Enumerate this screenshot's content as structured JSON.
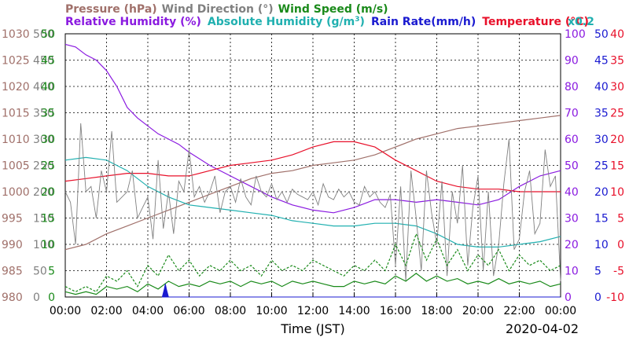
{
  "chart_data": {
    "type": "line",
    "date": "2020-04-02",
    "xlabel": "Time (JST)",
    "x_ticks": [
      "00:00",
      "02:00",
      "04:00",
      "06:00",
      "08:00",
      "10:00",
      "12:00",
      "14:00",
      "16:00",
      "18:00",
      "20:00",
      "22:00",
      "00:00"
    ],
    "legend_row1": [
      {
        "text": "Pressure (hPa)",
        "color": "#a0706a"
      },
      {
        "text": "Wind Direction (°)",
        "color": "#808080"
      },
      {
        "text": "Wind Speed (m/s)",
        "color": "#1a8a1a"
      }
    ],
    "legend_row2": [
      {
        "text": "Relative Humidity (%)",
        "color": "#8a1ae0"
      },
      {
        "text": "Absolute Humidity (g/m",
        "sup": "3",
        "close": ")",
        "color": "#20b0b0"
      },
      {
        "text": "Rain Rate(mm/h)",
        "color": "#1a1ad0"
      },
      {
        "text": "Temperature (°C)",
        "color": "#e8102a"
      }
    ],
    "scale_note": "x0.2",
    "axes": {
      "pressure": {
        "color": "#a0706a",
        "min": 980,
        "max": 1030,
        "ticks": [
          "980",
          "985",
          "990",
          "995",
          "1000",
          "1005",
          "1010",
          "1015",
          "1020",
          "1025",
          "1030"
        ]
      },
      "wind_direction": {
        "color": "#808080",
        "min": 0,
        "max": 500,
        "ticks": [
          "0",
          "50",
          "100",
          "150",
          "200",
          "250",
          "300",
          "350",
          "400",
          "450",
          "500"
        ]
      },
      "wind_speed": {
        "color": "#1a8a1a",
        "min": 0,
        "max": 50,
        "ticks": [
          "0",
          "5",
          "10",
          "15",
          "20",
          "25",
          "30",
          "35",
          "40",
          "45",
          "50"
        ]
      },
      "relative_humidity": {
        "color": "#8a1ae0",
        "min": 0,
        "max": 100,
        "ticks": [
          "0",
          "10",
          "20",
          "30",
          "40",
          "50",
          "60",
          "70",
          "80",
          "90",
          "100"
        ]
      },
      "rain_rate": {
        "color": "#1a1ad0",
        "min": 0,
        "max": 50,
        "ticks": [
          "0",
          "5",
          "10",
          "15",
          "20",
          "25",
          "30",
          "35",
          "40",
          "45",
          "50"
        ]
      },
      "temperature": {
        "color": "#e8102a",
        "min": -10,
        "max": 40,
        "ticks": [
          "-10",
          "-5",
          "0",
          "5",
          "10",
          "15",
          "20",
          "25",
          "30",
          "35",
          "40"
        ]
      }
    },
    "series": [
      {
        "name": "Pressure",
        "axis": "pressure",
        "color": "#a0706a",
        "style": "solid",
        "x": [
          0,
          1,
          2,
          3,
          4,
          5,
          6,
          7,
          8,
          9,
          10,
          11,
          12,
          13,
          14,
          15,
          16,
          17,
          18,
          19,
          20,
          21,
          22,
          23,
          24
        ],
        "y": [
          989,
          990,
          992,
          993.5,
          995,
          996.5,
          998,
          999.5,
          1001,
          1002.5,
          1003.5,
          1004,
          1005,
          1005.5,
          1006,
          1007,
          1008.5,
          1010,
          1011,
          1012,
          1012.5,
          1013,
          1013.5,
          1014,
          1014.5
        ]
      },
      {
        "name": "Relative Humidity",
        "axis": "relative_humidity",
        "color": "#8a1ae0",
        "style": "solid",
        "x": [
          0,
          0.5,
          1,
          1.5,
          2,
          2.5,
          3,
          3.5,
          4,
          4.5,
          5,
          5.5,
          6,
          7,
          8,
          9,
          10,
          11,
          12,
          13,
          14,
          15,
          16,
          17,
          18,
          19,
          20,
          21,
          22,
          23,
          24
        ],
        "y": [
          96,
          95,
          92,
          90,
          86,
          80,
          72,
          68,
          65,
          62,
          60,
          58,
          55,
          50,
          46,
          42,
          38,
          35,
          33,
          32,
          34,
          37,
          37,
          36,
          37,
          36,
          35,
          37,
          42,
          46,
          48
        ]
      },
      {
        "name": "Absolute Humidity",
        "axis": "relative_humidity",
        "color": "#20b0b0",
        "style": "solid",
        "x": [
          0,
          1,
          2,
          3,
          4,
          5,
          6,
          7,
          8,
          9,
          10,
          11,
          12,
          13,
          14,
          15,
          16,
          17,
          18,
          19,
          20,
          21,
          22,
          23,
          24
        ],
        "y": [
          52,
          53,
          52,
          48,
          42,
          38,
          35,
          34,
          33,
          32,
          31,
          29,
          28,
          27,
          27,
          28,
          28,
          27,
          24,
          20,
          19,
          19,
          20,
          21,
          23
        ]
      },
      {
        "name": "Temperature",
        "axis": "temperature",
        "color": "#e8102a",
        "style": "solid",
        "x": [
          0,
          1,
          2,
          3,
          4,
          5,
          6,
          7,
          8,
          9,
          10,
          11,
          12,
          13,
          14,
          15,
          16,
          17,
          18,
          19,
          20,
          21,
          22,
          23,
          24
        ],
        "y": [
          12,
          12.5,
          13,
          13.5,
          13.5,
          13,
          13,
          14,
          15,
          15.5,
          16,
          17,
          18.5,
          19.5,
          19.5,
          18.5,
          16,
          14,
          12,
          11,
          10.5,
          10.5,
          10,
          10,
          10
        ]
      },
      {
        "name": "Wind Direction",
        "axis": "wind_direction",
        "color": "#808080",
        "style": "solid",
        "x": [
          0,
          0.25,
          0.5,
          0.75,
          1,
          1.25,
          1.5,
          1.75,
          2,
          2.25,
          2.5,
          2.75,
          3,
          3.25,
          3.5,
          3.75,
          4,
          4.25,
          4.5,
          4.75,
          5,
          5.25,
          5.5,
          5.75,
          6,
          6.25,
          6.5,
          6.75,
          7,
          7.25,
          7.5,
          7.75,
          8,
          8.25,
          8.5,
          8.75,
          9,
          9.25,
          9.5,
          9.75,
          10,
          10.25,
          10.5,
          10.75,
          11,
          11.25,
          11.5,
          11.75,
          12,
          12.25,
          12.5,
          12.75,
          13,
          13.25,
          13.5,
          13.75,
          14,
          14.25,
          14.5,
          14.75,
          15,
          15.25,
          15.5,
          15.75,
          16,
          16.25,
          16.5,
          16.75,
          17,
          17.25,
          17.5,
          17.75,
          18,
          18.25,
          18.5,
          18.75,
          19,
          19.25,
          19.5,
          19.75,
          20,
          20.25,
          20.5,
          20.75,
          21,
          21.25,
          21.5,
          21.75,
          22,
          22.25,
          22.5,
          22.75,
          23,
          23.25,
          23.5,
          23.75,
          24
        ],
        "y": [
          200,
          180,
          100,
          330,
          200,
          210,
          150,
          240,
          200,
          315,
          180,
          190,
          200,
          240,
          150,
          170,
          190,
          110,
          260,
          130,
          200,
          120,
          220,
          200,
          280,
          190,
          210,
          180,
          200,
          230,
          160,
          200,
          210,
          180,
          225,
          190,
          175,
          230,
          200,
          190,
          215,
          185,
          200,
          180,
          205,
          195,
          190,
          185,
          200,
          175,
          215,
          190,
          185,
          205,
          190,
          200,
          180,
          175,
          210,
          190,
          200,
          180,
          170,
          195,
          60,
          210,
          30,
          240,
          150,
          50,
          240,
          160,
          100,
          220,
          40,
          200,
          140,
          250,
          60,
          170,
          230,
          50,
          200,
          40,
          100,
          215,
          300,
          90,
          110,
          200,
          240,
          120,
          140,
          280,
          210,
          230,
          30
        ]
      },
      {
        "name": "Wind Speed",
        "axis": "wind_speed",
        "color": "#1a8a1a",
        "style": "dashed",
        "x": [
          0,
          0.5,
          1,
          1.5,
          2,
          2.5,
          3,
          3.5,
          4,
          4.5,
          5,
          5.5,
          6,
          6.5,
          7,
          7.5,
          8,
          8.5,
          9,
          9.5,
          10,
          10.5,
          11,
          11.5,
          12,
          12.5,
          13,
          13.5,
          14,
          14.5,
          15,
          15.5,
          16,
          16.5,
          17,
          17.5,
          18,
          18.5,
          19,
          19.5,
          20,
          20.5,
          21,
          21.5,
          22,
          22.5,
          23,
          23.5,
          24
        ],
        "y": [
          2,
          1,
          2,
          1,
          4,
          3,
          5,
          2,
          6,
          4,
          8,
          5,
          7,
          4,
          6,
          5,
          7,
          5,
          6,
          4,
          7,
          5,
          6,
          5,
          7,
          6,
          5,
          4,
          6,
          5,
          7,
          5,
          10,
          6,
          12,
          7,
          11,
          6,
          9,
          5,
          8,
          6,
          9,
          5,
          8,
          6,
          7,
          5,
          6
        ]
      },
      {
        "name": "Wind Speed",
        "axis": "wind_speed",
        "color": "#1a8a1a",
        "style": "solid",
        "x": [
          0,
          0.5,
          1,
          1.5,
          2,
          2.5,
          3,
          3.5,
          4,
          4.5,
          5,
          5.5,
          6,
          6.5,
          7,
          7.5,
          8,
          8.5,
          9,
          9.5,
          10,
          10.5,
          11,
          11.5,
          12,
          12.5,
          13,
          13.5,
          14,
          14.5,
          15,
          15.5,
          16,
          16.5,
          17,
          17.5,
          18,
          18.5,
          19,
          19.5,
          20,
          20.5,
          21,
          21.5,
          22,
          22.5,
          23,
          23.5,
          24
        ],
        "y": [
          1,
          0.5,
          1,
          0.5,
          2,
          1.5,
          2,
          1,
          2.5,
          1.5,
          3,
          2,
          2.5,
          2,
          3,
          2.5,
          3,
          2,
          3,
          2.5,
          3,
          2,
          3,
          2.5,
          3,
          2.5,
          2,
          2,
          3,
          2.5,
          3,
          2.5,
          4,
          3,
          4.5,
          3,
          4,
          3,
          3.5,
          2.5,
          3,
          2.5,
          3.5,
          2.5,
          3,
          2.5,
          3,
          2,
          2.5
        ]
      },
      {
        "name": "Rain Rate",
        "axis": "rain_rate",
        "color": "#1a1ad0",
        "style": "area",
        "x": [
          4.7,
          4.8,
          4.85,
          4.9,
          5.0,
          24
        ],
        "y": [
          0,
          1.5,
          2.5,
          1.5,
          0,
          0
        ]
      }
    ]
  }
}
